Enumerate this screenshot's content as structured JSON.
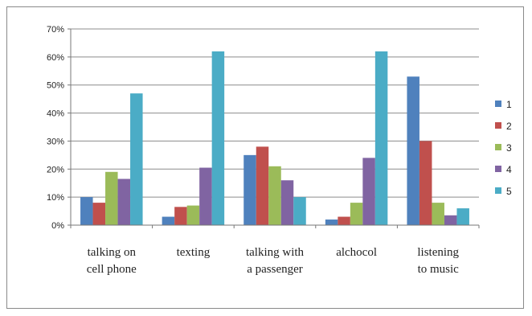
{
  "chart_data": {
    "type": "bar",
    "title": "",
    "xlabel": "",
    "ylabel": "",
    "ylim": [
      0,
      70
    ],
    "yticks": [
      "0%",
      "10%",
      "20%",
      "30%",
      "40%",
      "50%",
      "60%",
      "70%"
    ],
    "grid": true,
    "legend_position": "right",
    "categories": [
      [
        "talking on",
        "cell phone"
      ],
      [
        "texting"
      ],
      [
        "talking with",
        "a passenger"
      ],
      [
        "alchocol"
      ],
      [
        "listening",
        "to music"
      ]
    ],
    "series": [
      {
        "name": "1",
        "color": "#4f81bd",
        "values": [
          10,
          3,
          25,
          2,
          53
        ]
      },
      {
        "name": "2",
        "color": "#c0504d",
        "values": [
          8,
          6.5,
          28,
          3,
          30
        ]
      },
      {
        "name": "3",
        "color": "#9bbb59",
        "values": [
          19,
          7,
          21,
          8,
          8
        ]
      },
      {
        "name": "4",
        "color": "#8064a2",
        "values": [
          16.5,
          20.5,
          16,
          24,
          3.5
        ]
      },
      {
        "name": "5",
        "color": "#4bacc6",
        "values": [
          47,
          62,
          10,
          62,
          6
        ]
      }
    ]
  }
}
